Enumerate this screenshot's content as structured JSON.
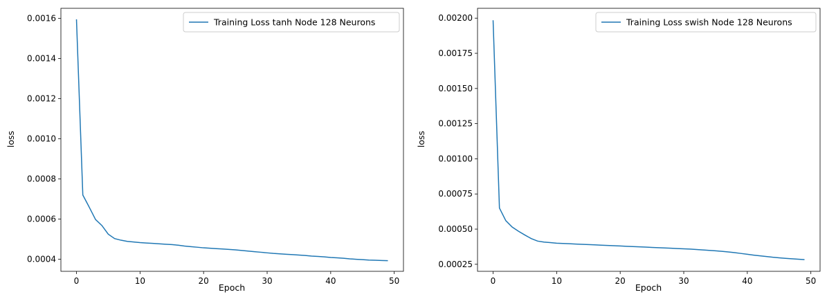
{
  "chart_data": [
    {
      "type": "line",
      "xlabel": "Epoch",
      "ylabel": "loss",
      "xlim": [
        -2.45,
        51.45
      ],
      "ylim": [
        0.00034,
        0.00165
      ],
      "xticks": [
        0,
        10,
        20,
        30,
        40,
        50
      ],
      "yticks": [
        0.0004,
        0.0006,
        0.0008,
        0.001,
        0.0012,
        0.0014,
        0.0016
      ],
      "ytick_labels": [
        "0.0004",
        "0.0006",
        "0.0008",
        "0.0010",
        "0.0012",
        "0.0014",
        "0.0016"
      ],
      "grid": false,
      "legend_position": "upper right",
      "series": [
        {
          "name": "Training Loss tanh Node 128 Neurons",
          "color": "#1f77b4",
          "x": [
            0,
            1,
            2,
            3,
            4,
            5,
            6,
            7,
            8,
            9,
            10,
            11,
            12,
            13,
            14,
            15,
            16,
            17,
            18,
            19,
            20,
            21,
            22,
            23,
            24,
            25,
            26,
            27,
            28,
            29,
            30,
            31,
            32,
            33,
            34,
            35,
            36,
            37,
            38,
            39,
            40,
            41,
            42,
            43,
            44,
            45,
            46,
            47,
            48,
            49
          ],
          "y": [
            0.001595,
            0.00072,
            0.00066,
            0.000598,
            0.000568,
            0.000525,
            0.000503,
            0.000495,
            0.000489,
            0.000486,
            0.000483,
            0.000481,
            0.000479,
            0.000477,
            0.000475,
            0.000473,
            0.00047,
            0.000466,
            0.000463,
            0.00046,
            0.000457,
            0.000455,
            0.000453,
            0.000451,
            0.000449,
            0.000447,
            0.000444,
            0.000441,
            0.000438,
            0.000435,
            0.000432,
            0.000429,
            0.000427,
            0.000425,
            0.000423,
            0.000421,
            0.000419,
            0.000416,
            0.000414,
            0.000412,
            0.000409,
            0.000407,
            0.000405,
            0.000402,
            0.0004,
            0.000398,
            0.000396,
            0.000395,
            0.000394,
            0.000393
          ]
        }
      ]
    },
    {
      "type": "line",
      "xlabel": "Epoch",
      "ylabel": "loss",
      "xlim": [
        -2.45,
        51.45
      ],
      "ylim": [
        0.0002,
        0.00207
      ],
      "xticks": [
        0,
        10,
        20,
        30,
        40,
        50
      ],
      "yticks": [
        0.00025,
        0.0005,
        0.00075,
        0.001,
        0.00125,
        0.0015,
        0.00175,
        0.002
      ],
      "ytick_labels": [
        "0.00025",
        "0.00050",
        "0.00075",
        "0.00100",
        "0.00125",
        "0.00150",
        "0.00175",
        "0.00200"
      ],
      "grid": false,
      "legend_position": "upper right",
      "series": [
        {
          "name": "Training Loss swish Node 128 Neurons",
          "color": "#1f77b4",
          "x": [
            0,
            1,
            2,
            3,
            4,
            5,
            6,
            7,
            8,
            9,
            10,
            11,
            12,
            13,
            14,
            15,
            16,
            17,
            18,
            19,
            20,
            21,
            22,
            23,
            24,
            25,
            26,
            27,
            28,
            29,
            30,
            31,
            32,
            33,
            34,
            35,
            36,
            37,
            38,
            39,
            40,
            41,
            42,
            43,
            44,
            45,
            46,
            47,
            48,
            49
          ],
          "y": [
            0.001985,
            0.00065,
            0.00056,
            0.000515,
            0.000485,
            0.000458,
            0.000433,
            0.000415,
            0.000408,
            0.000404,
            0.0004,
            0.000398,
            0.000396,
            0.000394,
            0.000392,
            0.00039,
            0.000388,
            0.000386,
            0.000384,
            0.000382,
            0.00038,
            0.000378,
            0.000376,
            0.000374,
            0.000372,
            0.00037,
            0.000368,
            0.000366,
            0.000364,
            0.000362,
            0.00036,
            0.000358,
            0.000355,
            0.000352,
            0.000349,
            0.000346,
            0.000342,
            0.000338,
            0.000333,
            0.000327,
            0.000321,
            0.000315,
            0.00031,
            0.000305,
            0.0003,
            0.000296,
            0.000292,
            0.000289,
            0.000286,
            0.000283
          ]
        }
      ]
    }
  ]
}
